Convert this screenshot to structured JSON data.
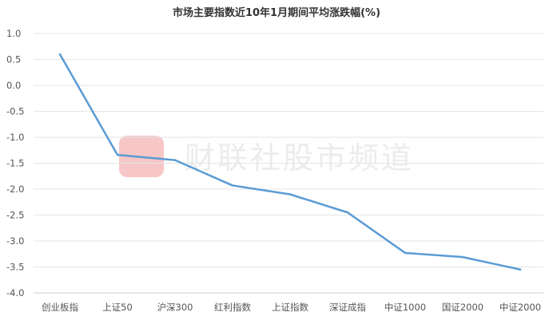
{
  "chart_data": {
    "type": "line",
    "title": "市场主要指数近10年1月期间平均涨跌幅(%)",
    "categories": [
      "创业板指",
      "上证50",
      "沪深300",
      "红利指数",
      "上证指数",
      "深证成指",
      "中证1000",
      "国证2000",
      "中证2000"
    ],
    "series": [
      {
        "values": [
          0.6,
          -1.34,
          -1.44,
          -1.93,
          -2.1,
          -2.45,
          -3.23,
          -3.31,
          -3.55
        ]
      }
    ],
    "ylim": [
      -4.0,
      1.0
    ],
    "yticks": [
      "1.0",
      "0.5",
      "0.0",
      "-0.5",
      "-1.0",
      "-1.5",
      "-2.0",
      "-2.5",
      "-3.0",
      "-3.5",
      "-4.0"
    ],
    "grid": true,
    "line_color": "#5b9bd5",
    "watermark": "财联社股市频道",
    "watermark_color": "#f7c6c6"
  }
}
